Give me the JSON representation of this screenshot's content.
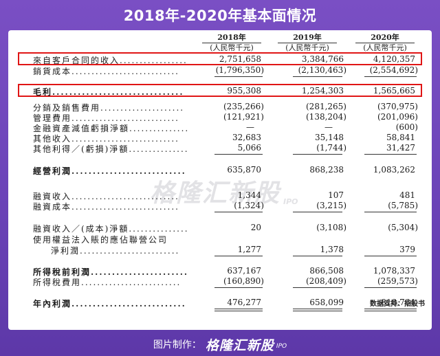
{
  "title": "2018年-2020年基本面情况",
  "columns": [
    {
      "year": "2018年",
      "unit": "(人民幣千元)"
    },
    {
      "year": "2019年",
      "unit": "(人民幣千元)"
    },
    {
      "year": "2020年",
      "unit": "(人民幣千元)"
    }
  ],
  "rows": [
    {
      "label": "來自客戶合同的收入.................",
      "values": [
        "2,751,658",
        "3,384,766",
        "4,120,357"
      ]
    },
    {
      "label": "銷貨成本...........................",
      "values": [
        "(1,796,350)",
        "(2,130,463)",
        "(2,554,692)"
      ]
    },
    {
      "label": "毛利...............................",
      "values": [
        "955,308",
        "1,254,303",
        "1,565,665"
      ]
    },
    {
      "label": "分銷及銷售費用.....................",
      "values": [
        "(235,266)",
        "(281,265)",
        "(370,975)"
      ]
    },
    {
      "label": "管理費用...........................",
      "values": [
        "(121,921)",
        "(138,204)",
        "(201,096)"
      ]
    },
    {
      "label": "金融資產減值虧損淨額...............",
      "values": [
        "—",
        "—",
        "(600)"
      ]
    },
    {
      "label": "其他收入...........................",
      "values": [
        "32,683",
        "35,148",
        "58,841"
      ]
    },
    {
      "label": "其他利得／(虧損)淨額...............",
      "values": [
        "5,066",
        "(1,744)",
        "31,427"
      ]
    },
    {
      "label": "經營利潤...........................",
      "values": [
        "635,870",
        "868,238",
        "1,083,262"
      ]
    },
    {
      "label": "融資收入...........................",
      "values": [
        "1,344",
        "107",
        "481"
      ]
    },
    {
      "label": "融資成本...........................",
      "values": [
        "(1,324)",
        "(3,215)",
        "(5,785)"
      ]
    },
    {
      "label": "融資收入／(成本)淨額...............",
      "values": [
        "20",
        "(3,108)",
        "(5,304)"
      ]
    },
    {
      "label": "使用權益法入賬的應佔聯營公司",
      "values": [
        "",
        "",
        ""
      ]
    },
    {
      "label": "淨利潤.........................",
      "values": [
        "1,277",
        "1,378",
        "379"
      ]
    },
    {
      "label": "所得稅前利潤.......................",
      "values": [
        "637,167",
        "866,508",
        "1,078,337"
      ]
    },
    {
      "label": "所得稅費用.........................",
      "values": [
        "(160,890)",
        "(208,409)",
        "(259,573)"
      ]
    },
    {
      "label": "年內利潤...........................",
      "values": [
        "476,277",
        "658,099",
        "818,764"
      ]
    }
  ],
  "watermark": {
    "text": "格隆汇新股",
    "ipo": "IPO"
  },
  "source": "数据支持：招股书",
  "footer": {
    "label": "图片制作：",
    "logo": "格隆汇新股",
    "ipo": "IPO"
  },
  "highlight_color": "#e01515"
}
